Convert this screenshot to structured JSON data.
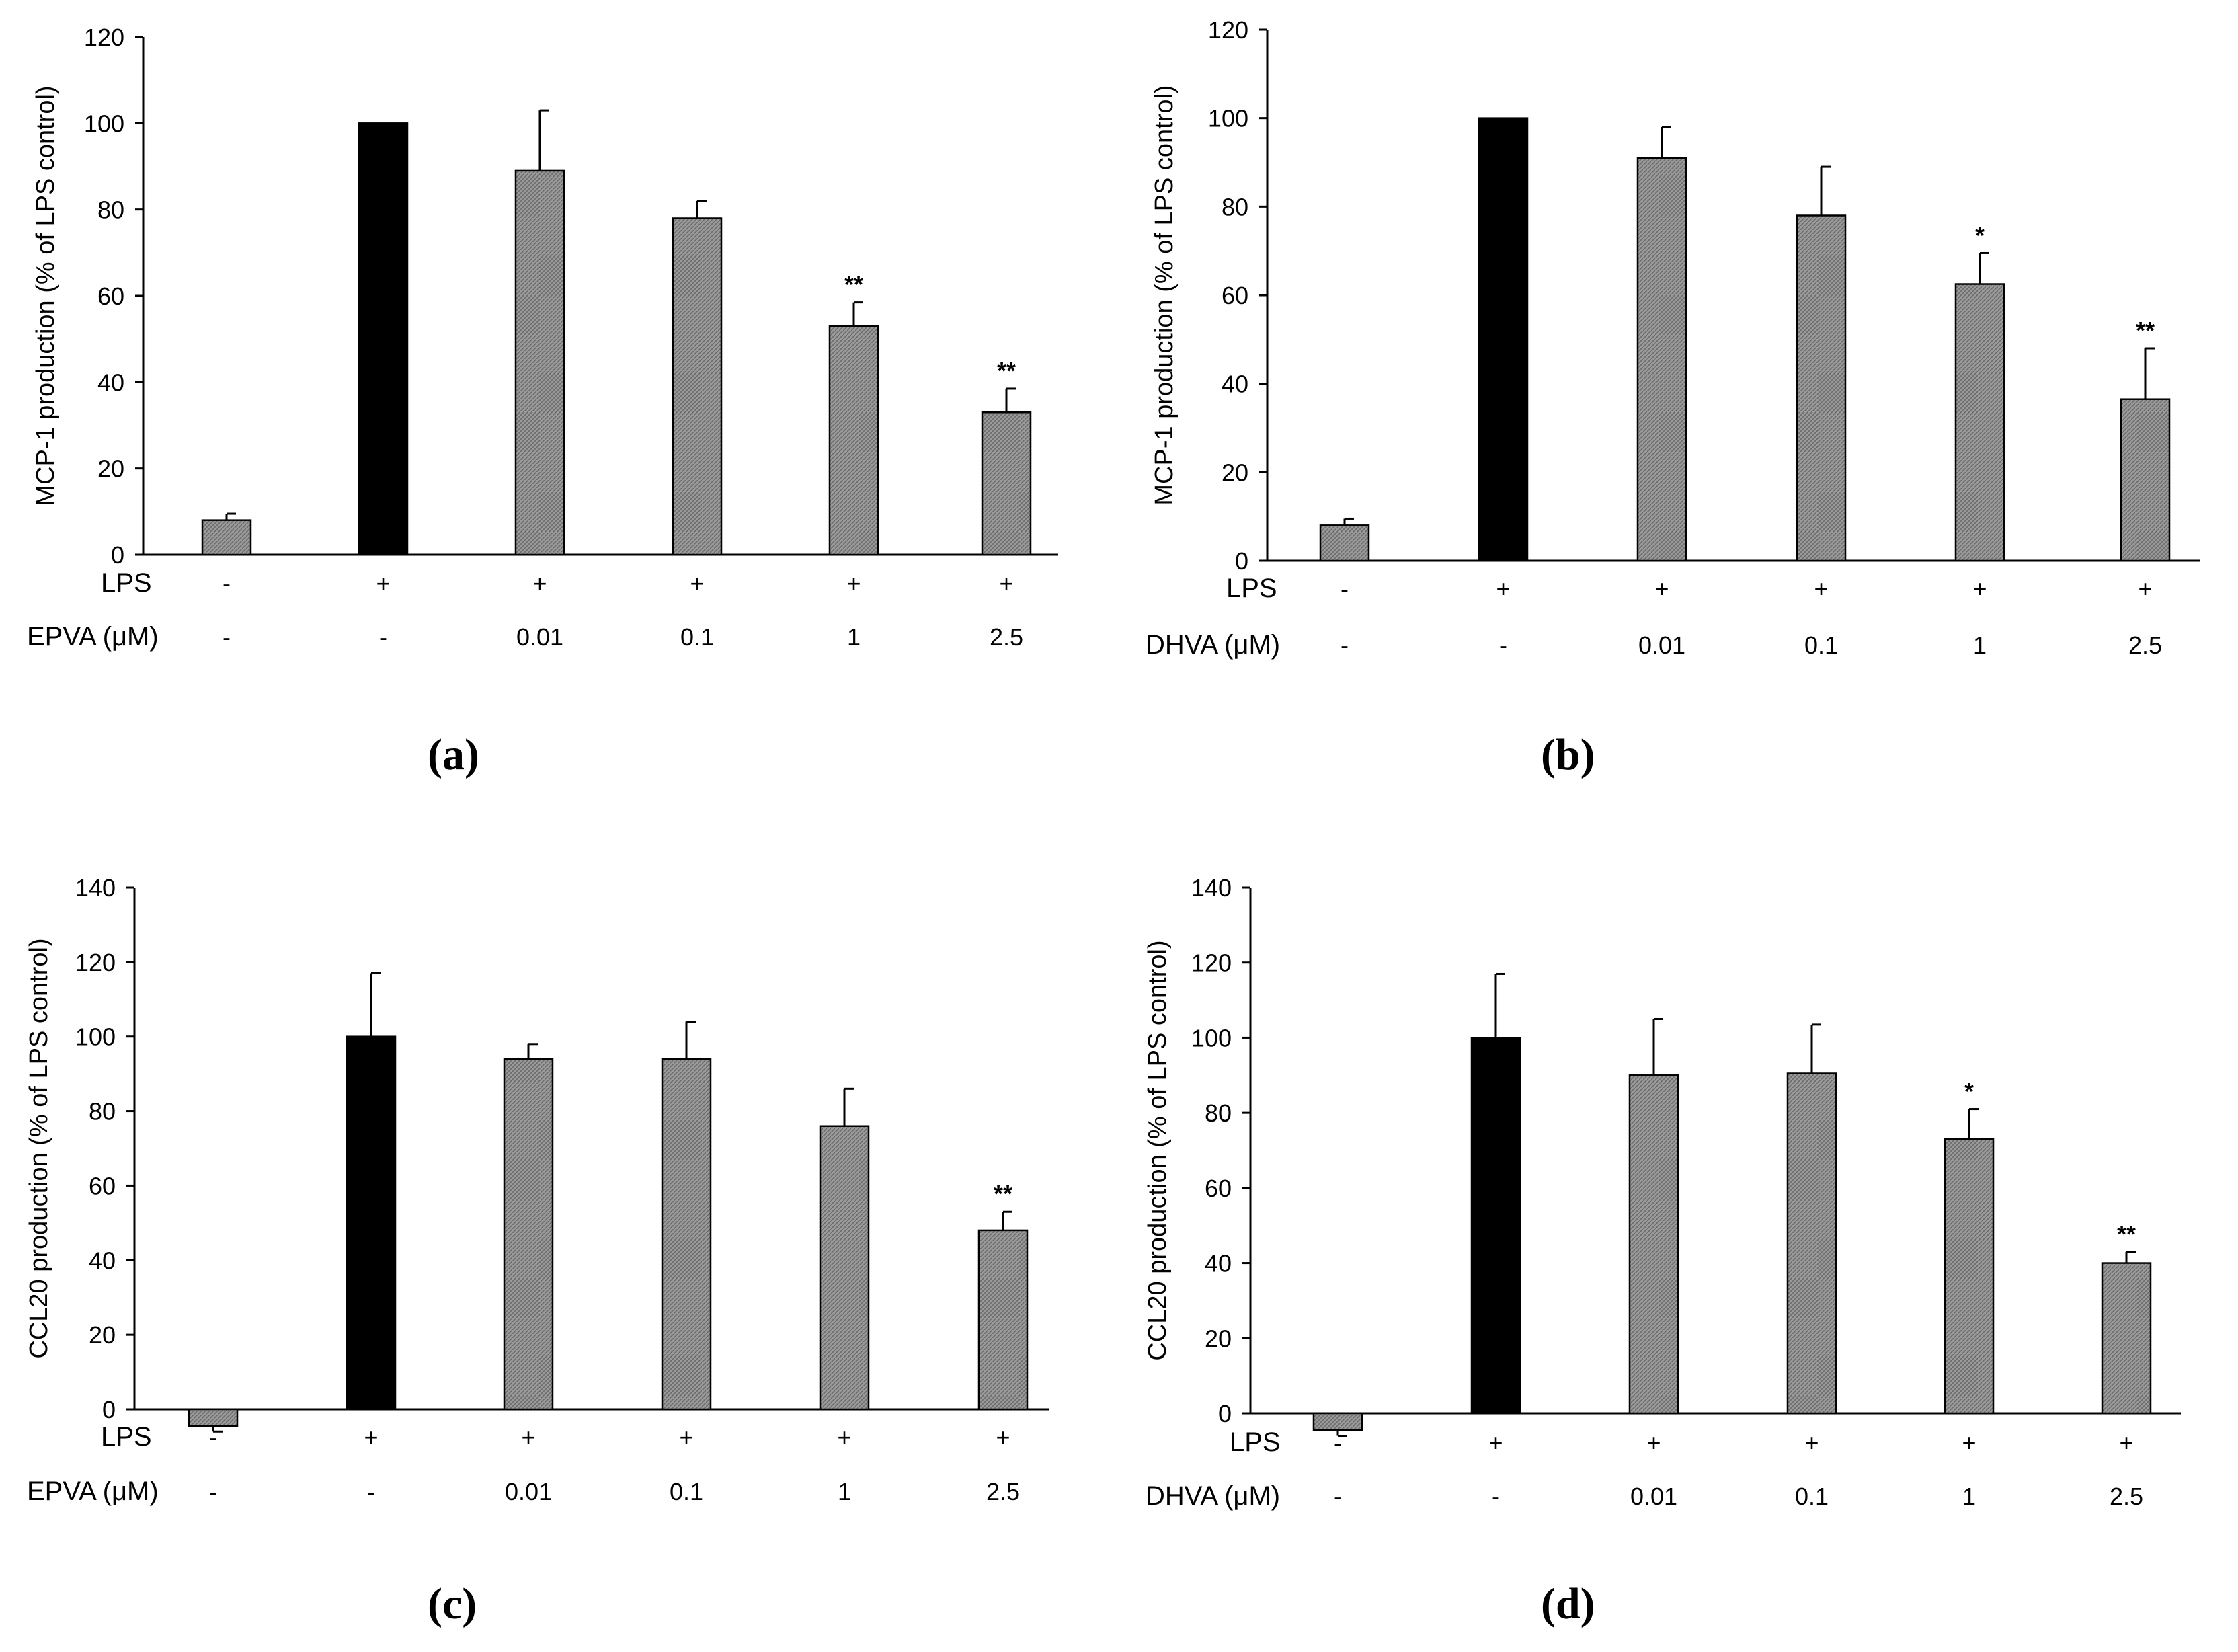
{
  "hatch_color": "#8a8a8a",
  "control_color": "#000000",
  "chart_data": [
    {
      "panel": "(a)",
      "type": "bar",
      "ylabel": "MCP-1 production (% of LPS control)",
      "ylim": [
        0,
        120
      ],
      "yticks": [
        "0",
        "20",
        "40",
        "60",
        "80",
        "100",
        "120"
      ],
      "rows": [
        {
          "label": "LPS",
          "values": [
            "-",
            "+",
            "+",
            "+",
            "+",
            "+"
          ]
        },
        {
          "label": "EPVA (μM)",
          "values": [
            "-",
            "-",
            "0.01",
            "0.1",
            "1",
            "2.5"
          ]
        }
      ],
      "values": [
        8,
        100,
        89,
        78,
        53,
        33
      ],
      "errors": [
        1.5,
        0,
        14,
        4,
        5.5,
        5.5
      ],
      "control": [
        false,
        true,
        false,
        false,
        false,
        false
      ],
      "significance": [
        "",
        "",
        "",
        "",
        "**",
        "**"
      ]
    },
    {
      "panel": "(b)",
      "type": "bar",
      "ylabel": "MCP-1 production (% of LPS control)",
      "ylim": [
        0,
        120
      ],
      "yticks": [
        "0",
        "20",
        "40",
        "60",
        "80",
        "100",
        "120"
      ],
      "rows": [
        {
          "label": "LPS",
          "values": [
            "-",
            "+",
            "+",
            "+",
            "+",
            "+"
          ]
        },
        {
          "label": "DHVA (μM)",
          "values": [
            "-",
            "-",
            "0.01",
            "0.1",
            "1",
            "2.5"
          ]
        }
      ],
      "values": [
        8,
        100,
        91,
        78,
        62.5,
        36.5
      ],
      "errors": [
        1.5,
        0,
        7,
        11,
        7,
        11.5
      ],
      "control": [
        false,
        true,
        false,
        false,
        false,
        false
      ],
      "significance": [
        "",
        "",
        "",
        "",
        "*",
        "**"
      ]
    },
    {
      "panel": "(c)",
      "type": "bar",
      "ylabel": "CCL20 production (% of LPS control)",
      "ylim": [
        0,
        140
      ],
      "yticks": [
        "0",
        "20",
        "40",
        "60",
        "80",
        "100",
        "120",
        "140"
      ],
      "rows": [
        {
          "label": "LPS",
          "values": [
            "-",
            "+",
            "+",
            "+",
            "+",
            "+"
          ]
        },
        {
          "label": "EPVA (μM)",
          "values": [
            "-",
            "-",
            "0.01",
            "0.1",
            "1",
            "2.5"
          ]
        }
      ],
      "values": [
        -4.5,
        100,
        94,
        94,
        76,
        48
      ],
      "errors": [
        1.5,
        17,
        4,
        10,
        10,
        5
      ],
      "control": [
        false,
        true,
        false,
        false,
        false,
        false
      ],
      "significance": [
        "",
        "",
        "",
        "",
        "",
        "**"
      ]
    },
    {
      "panel": "(d)",
      "type": "bar",
      "ylabel": "CCL20 production (% of LPS control)",
      "ylim": [
        0,
        140
      ],
      "yticks": [
        "0",
        "20",
        "40",
        "60",
        "80",
        "100",
        "120",
        "140"
      ],
      "rows": [
        {
          "label": "LPS",
          "values": [
            "-",
            "+",
            "+",
            "+",
            "+",
            "+"
          ]
        },
        {
          "label": "DHVA (μM)",
          "values": [
            "-",
            "-",
            "0.01",
            "0.1",
            "1",
            "2.5"
          ]
        }
      ],
      "values": [
        -4.5,
        100,
        90,
        90.5,
        73,
        40
      ],
      "errors": [
        1.5,
        17,
        15,
        13,
        8,
        3
      ],
      "control": [
        false,
        true,
        false,
        false,
        false,
        false
      ],
      "significance": [
        "",
        "",
        "",
        "",
        "*",
        "**"
      ]
    }
  ]
}
